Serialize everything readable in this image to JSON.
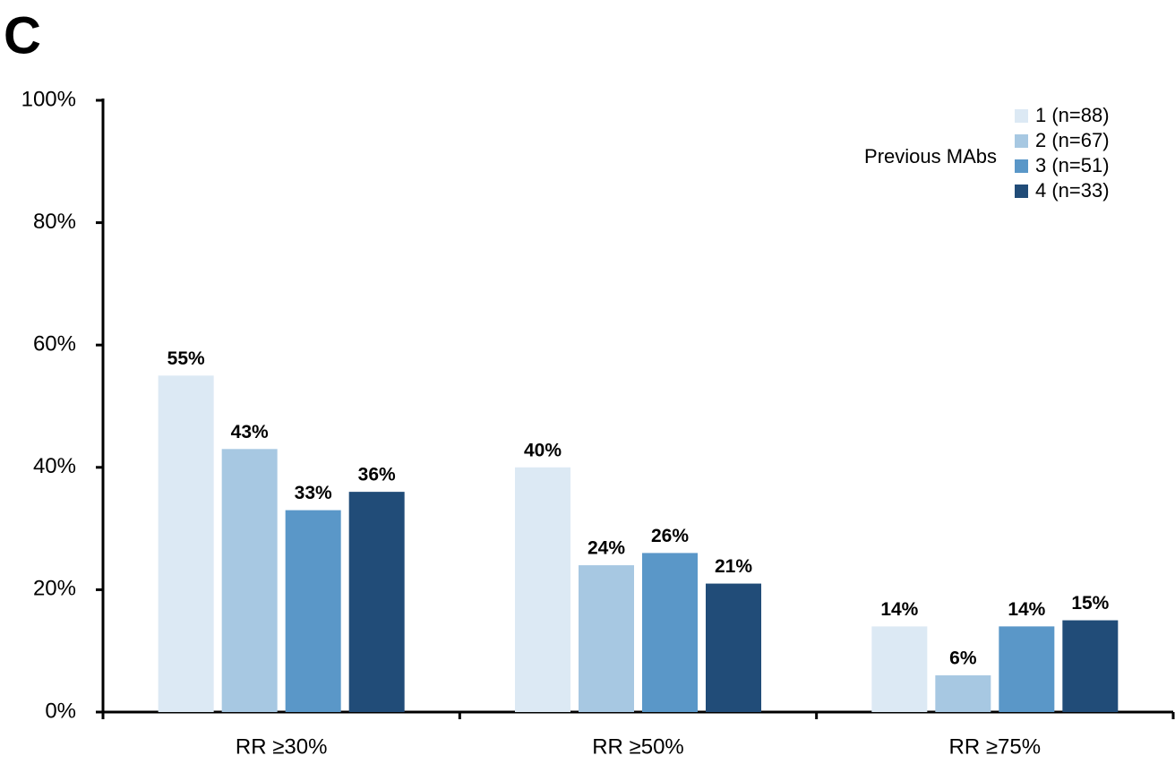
{
  "chart_data": {
    "type": "bar",
    "panel_label": "C",
    "legend_title": "Previous MAbs",
    "categories": [
      "RR ≥30%",
      "RR ≥50%",
      "RR ≥75%"
    ],
    "series": [
      {
        "name": "1 (n=88)",
        "color": "#dce9f4",
        "values": [
          55,
          40,
          14
        ],
        "value_labels": [
          "55%",
          "40%",
          "14%"
        ]
      },
      {
        "name": "2 (n=67)",
        "color": "#a7c8e2",
        "values": [
          43,
          24,
          6
        ],
        "value_labels": [
          "43%",
          "24%",
          "6%"
        ]
      },
      {
        "name": "3 (n=51)",
        "color": "#5a97c8",
        "values": [
          33,
          26,
          14
        ],
        "value_labels": [
          "33%",
          "26%",
          "14%"
        ]
      },
      {
        "name": "4 (n=33)",
        "color": "#214c78",
        "values": [
          36,
          21,
          15
        ],
        "value_labels": [
          "36%",
          "21%",
          "15%"
        ]
      }
    ],
    "ylim": [
      0,
      100
    ],
    "yticks": [
      {
        "value": 0,
        "label": "0%"
      },
      {
        "value": 20,
        "label": "20%"
      },
      {
        "value": 40,
        "label": "40%"
      },
      {
        "value": 60,
        "label": "60%"
      },
      {
        "value": 80,
        "label": "80%"
      },
      {
        "value": 100,
        "label": "100%"
      }
    ],
    "legend": "top-right"
  }
}
